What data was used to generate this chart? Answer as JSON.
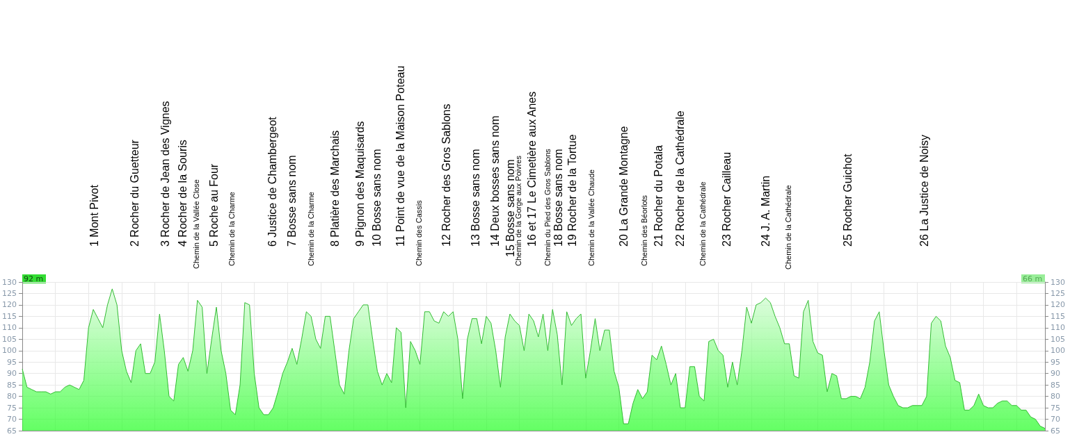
{
  "chart_data": {
    "type": "area",
    "color": "#33bb33",
    "categories": [
      null,
      null,
      null,
      null,
      null,
      null,
      null,
      null,
      null,
      null,
      null,
      null,
      null,
      null,
      null,
      null,
      null,
      null,
      null,
      null,
      null,
      null,
      null,
      null,
      null,
      null,
      null,
      null,
      null,
      null,
      null,
      null,
      null,
      null,
      null,
      null,
      null,
      null,
      null,
      null,
      null,
      null,
      null,
      null,
      null,
      null,
      null,
      null,
      null,
      null,
      null,
      null,
      null,
      null,
      null,
      null,
      null,
      null,
      null,
      null,
      null,
      null,
      null,
      null,
      null,
      null,
      null,
      null,
      null,
      null,
      null,
      null,
      null,
      null,
      null,
      null,
      null,
      null,
      null,
      null,
      null,
      null,
      null,
      null,
      null,
      null,
      null,
      null,
      null,
      null,
      null,
      null,
      null,
      null,
      null,
      null,
      null,
      null,
      null,
      null,
      null,
      null,
      null,
      null,
      null,
      null,
      null,
      null,
      null,
      null,
      null,
      null,
      null,
      null,
      null,
      null,
      null,
      null,
      null,
      null,
      null,
      null,
      null,
      null,
      null,
      null,
      null,
      null,
      null,
      null,
      null,
      null,
      null,
      null,
      null,
      null,
      null,
      null,
      null,
      null,
      null,
      null,
      null,
      null,
      null,
      null,
      null,
      null,
      null,
      null,
      null,
      null,
      null,
      null,
      null,
      null,
      null,
      null,
      null,
      null,
      null,
      null,
      null,
      null,
      null,
      null,
      null,
      null,
      null,
      null,
      null,
      null,
      null,
      null,
      null,
      null,
      null,
      null,
      null,
      null,
      null,
      null,
      null,
      null,
      null,
      null,
      null,
      null,
      null,
      null,
      null,
      null,
      null,
      null,
      null,
      null,
      null,
      null,
      null,
      null,
      null,
      null,
      null,
      null,
      null,
      null,
      null,
      null,
      null,
      null,
      null,
      null,
      null,
      null,
      null,
      null,
      null
    ],
    "values": [
      92,
      84,
      83,
      82,
      82,
      82,
      81,
      82,
      82,
      84,
      85,
      84,
      83,
      87,
      110,
      118,
      114,
      110,
      120,
      127,
      120,
      100,
      91,
      86,
      100,
      103,
      90,
      90,
      95,
      116,
      100,
      80,
      78,
      94,
      97,
      91,
      100,
      122,
      119,
      90,
      105,
      119,
      100,
      90,
      74,
      72,
      85,
      121,
      120,
      90,
      75,
      72,
      72,
      75,
      82,
      90,
      95,
      101,
      94,
      105,
      117,
      115,
      105,
      101,
      115,
      115,
      100,
      85,
      81,
      100,
      114,
      117,
      120,
      120,
      105,
      91,
      85,
      90,
      86,
      110,
      108,
      75,
      104,
      100,
      94,
      117,
      117,
      113,
      112,
      117,
      115,
      117,
      105,
      79,
      105,
      114,
      114,
      103,
      115,
      112,
      100,
      84,
      106,
      116,
      113,
      111,
      100,
      116,
      113,
      106,
      116,
      100,
      118,
      107,
      85,
      117,
      111,
      114,
      116,
      88,
      100,
      114,
      100,
      109,
      109,
      91,
      84,
      68,
      68,
      77,
      83,
      79,
      82,
      98,
      96,
      102,
      94,
      85,
      90,
      75,
      75,
      93,
      93,
      80,
      78,
      104,
      105,
      100,
      98,
      84,
      95,
      85,
      100,
      119,
      112,
      120,
      121,
      123,
      121,
      115,
      110,
      103,
      103,
      89,
      88,
      117,
      122,
      104,
      99,
      98,
      82,
      90,
      89,
      79,
      79,
      80,
      80,
      79,
      84,
      95,
      113,
      117,
      100,
      85,
      80,
      76,
      75,
      75,
      76,
      76,
      76,
      80,
      112,
      115,
      113,
      102,
      97,
      87,
      86,
      74,
      74,
      76,
      81,
      76,
      75,
      75,
      77,
      78,
      78,
      76,
      76,
      74,
      74,
      71,
      70,
      67,
      66
    ],
    "ylim": [
      65,
      130
    ],
    "yticks": [
      65,
      70,
      75,
      80,
      85,
      90,
      95,
      100,
      105,
      110,
      115,
      120,
      125,
      130
    ],
    "y2lim": [
      65,
      130
    ],
    "y2ticks": [
      65,
      70,
      75,
      80,
      85,
      90,
      95,
      100,
      105,
      110,
      115,
      120,
      125,
      130
    ],
    "grid": true,
    "annotations": [
      "1 Mont Pivot",
      "2 Rocher du Guetteur",
      "3 Rocher de Jean des Vignes",
      "4 Rocher de la Souris",
      "Chemin de la Vallée Close",
      "5 Roche au Four",
      "Chemin de la Charme",
      "6 Justice de Chambergeot",
      "7 Bosse sans nom",
      "Chemin de la Charme",
      "8 Platière des Marchais",
      "9 Pignon des Maquisards",
      "10 Bosse sans nom",
      "11 Point de vue de la Maison Poteau",
      "Chemin des Cassis",
      "12 Rocher des Gros Sablons",
      "13 Bosse sans nom",
      "14 Deux bosses sans nom",
      "15 Bosse sans nom",
      "Chemin de la Gorge aux Poivres",
      "16 et 17 Le Cimetière aux Anes",
      "Chemin du Pied des Gros Sablons",
      "18 Bosse sans nom",
      "19 Rocher de la Tortue",
      "Chemin de la Vallée Chaude",
      "20 La Grande Montagne",
      "Chemin des Béorlots",
      "21 Rocher du Potala",
      "22 Rocher de la Cathédrale",
      "Chemin de la Cathédrale",
      "23 Rocher Cailleau",
      "24 J. A. Martin",
      "Chemin de la Cathédrale",
      "25 Rocher Guichot",
      "26 La Justice de Noisy",
      "92 m",
      "66 m"
    ]
  }
}
